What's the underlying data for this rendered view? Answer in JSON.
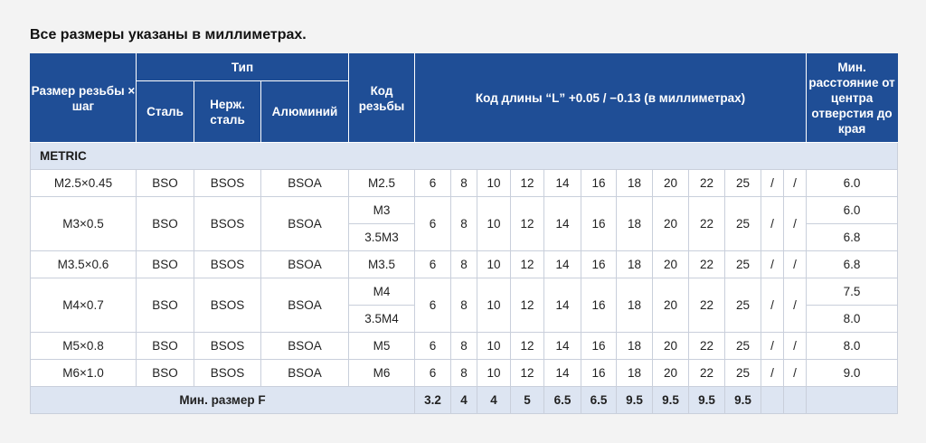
{
  "caption": "Все размеры указаны в миллиметрах.",
  "header": {
    "thread_size": "Размер резьбы × шаг",
    "type": "Тип",
    "steel": "Сталь",
    "stainless": "Нерж. сталь",
    "aluminum": "Алюминий",
    "thread_code": "Код резьбы",
    "length_code": "Код длины “L” +0.05 / −0.13 (в миллиметрах)",
    "min_distance": "Мин. расстояние от центра отверстия до края"
  },
  "section": "METRIC",
  "lengths": [
    "6",
    "8",
    "10",
    "12",
    "14",
    "16",
    "18",
    "20",
    "22",
    "25",
    "/",
    "/"
  ],
  "rows": [
    {
      "size": "M2.5×0.45",
      "steel": "BSO",
      "stainless": "BSOS",
      "aluminum": "BSOA",
      "codes": [
        "M2.5"
      ],
      "dists": [
        "6.0"
      ]
    },
    {
      "size": "M3×0.5",
      "steel": "BSO",
      "stainless": "BSOS",
      "aluminum": "BSOA",
      "codes": [
        "M3",
        "3.5M3"
      ],
      "dists": [
        "6.0",
        "6.8"
      ]
    },
    {
      "size": "M3.5×0.6",
      "steel": "BSO",
      "stainless": "BSOS",
      "aluminum": "BSOA",
      "codes": [
        "M3.5"
      ],
      "dists": [
        "6.8"
      ]
    },
    {
      "size": "M4×0.7",
      "steel": "BSO",
      "stainless": "BSOS",
      "aluminum": "BSOA",
      "codes": [
        "M4",
        "3.5M4"
      ],
      "dists": [
        "7.5",
        "8.0"
      ]
    },
    {
      "size": "M5×0.8",
      "steel": "BSO",
      "stainless": "BSOS",
      "aluminum": "BSOA",
      "codes": [
        "M5"
      ],
      "dists": [
        "8.0"
      ]
    },
    {
      "size": "M6×1.0",
      "steel": "BSO",
      "stainless": "BSOS",
      "aluminum": "BSOA",
      "codes": [
        "M6"
      ],
      "dists": [
        "9.0"
      ]
    }
  ],
  "min_f": {
    "label": "Мин. размер F",
    "values": [
      "3.2",
      "4",
      "4",
      "5",
      "6.5",
      "6.5",
      "9.5",
      "9.5",
      "9.5",
      "9.5",
      "",
      ""
    ]
  }
}
